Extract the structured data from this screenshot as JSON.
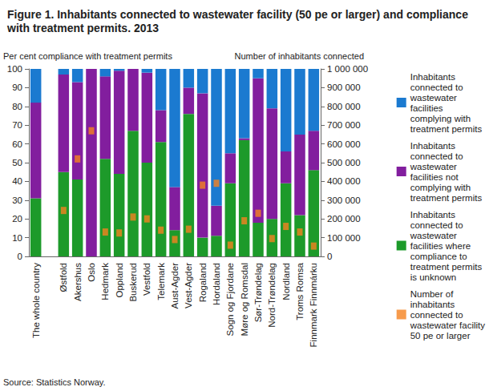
{
  "chart_data": {
    "type": "bar",
    "title": "Figure 1. Inhabitants connected to wastewater facility (50 pe or larger) and compliance with treatment permits. 2013",
    "y_label": "Per cent compliance with treatment permits",
    "y2_label": "Number of inhabitants connected",
    "annotations": [
      "Source: Statistics Norway."
    ],
    "stacked": true,
    "grid": false,
    "legend": "right",
    "categories": [
      "The whole country",
      null,
      "Østfold",
      "Akershus",
      "Oslo",
      "Hedmark",
      "Oppland",
      "Buskerud",
      "Vestfold",
      "Telemark",
      "Aust-Agder",
      "Vest-Agder",
      "Rogaland",
      "Hordaland",
      "Sogn og Fjordane",
      "Møre og Romsdal",
      "Sør-Trøndelag",
      "Nord-Trøndelag",
      "Nordland",
      "Troms Romsa",
      "Finnmark Finnmárku"
    ],
    "series": [
      {
        "name": "Inhabitants connected to wastewater facilities complying with treatment permits",
        "type": "bar",
        "color": "#1b7ad0",
        "values": [
          18,
          null,
          3,
          7,
          0,
          4,
          1,
          0,
          2,
          22,
          63,
          10,
          13,
          73,
          45,
          37,
          5,
          21,
          44,
          35,
          33
        ]
      },
      {
        "name": "Inhabitants connected to wastewater facilities not complying with treatment permits",
        "type": "bar",
        "color": "#821e9e",
        "values": [
          51,
          null,
          52,
          52,
          100,
          44,
          55,
          33,
          48,
          17,
          23,
          14,
          77,
          16,
          16,
          1,
          77,
          59,
          17,
          43,
          21
        ]
      },
      {
        "name": "Inhabitants connected to wastewater facilities where compliance to treatment permits is unknown",
        "type": "bar",
        "color": "#1d9a2a",
        "values": [
          31,
          null,
          45,
          41,
          0,
          52,
          44,
          67,
          50,
          61,
          14,
          76,
          10,
          11,
          39,
          62,
          18,
          20,
          39,
          22,
          46
        ]
      },
      {
        "name": "Number of inhabitants connected to wastewater facility 50 pe or larger",
        "type": "scatter",
        "axis": "y2",
        "marker": "square",
        "color": "#f5821f",
        "values": [
          null,
          null,
          245000,
          520000,
          670000,
          130000,
          125000,
          210000,
          200000,
          140000,
          90000,
          145000,
          380000,
          390000,
          60000,
          190000,
          230000,
          95000,
          160000,
          130000,
          55000
        ]
      }
    ],
    "ylim": [
      0,
      100
    ],
    "yticks": [
      0,
      10,
      20,
      30,
      40,
      50,
      60,
      70,
      80,
      90,
      100
    ],
    "y2lim": [
      0,
      1000000
    ],
    "y2ticks": [
      {
        "value": 0,
        "label": "0"
      },
      {
        "value": 100000,
        "label": "100 000"
      },
      {
        "value": 200000,
        "label": "200 000"
      },
      {
        "value": 300000,
        "label": "300 000"
      },
      {
        "value": 400000,
        "label": "400 000"
      },
      {
        "value": 500000,
        "label": "500 000"
      },
      {
        "value": 600000,
        "label": "600 000"
      },
      {
        "value": 700000,
        "label": "700 000"
      },
      {
        "value": 800000,
        "label": "800 000"
      },
      {
        "value": 900000,
        "label": "900 000"
      },
      {
        "value": 1000000,
        "label": "1 000 000"
      }
    ]
  }
}
